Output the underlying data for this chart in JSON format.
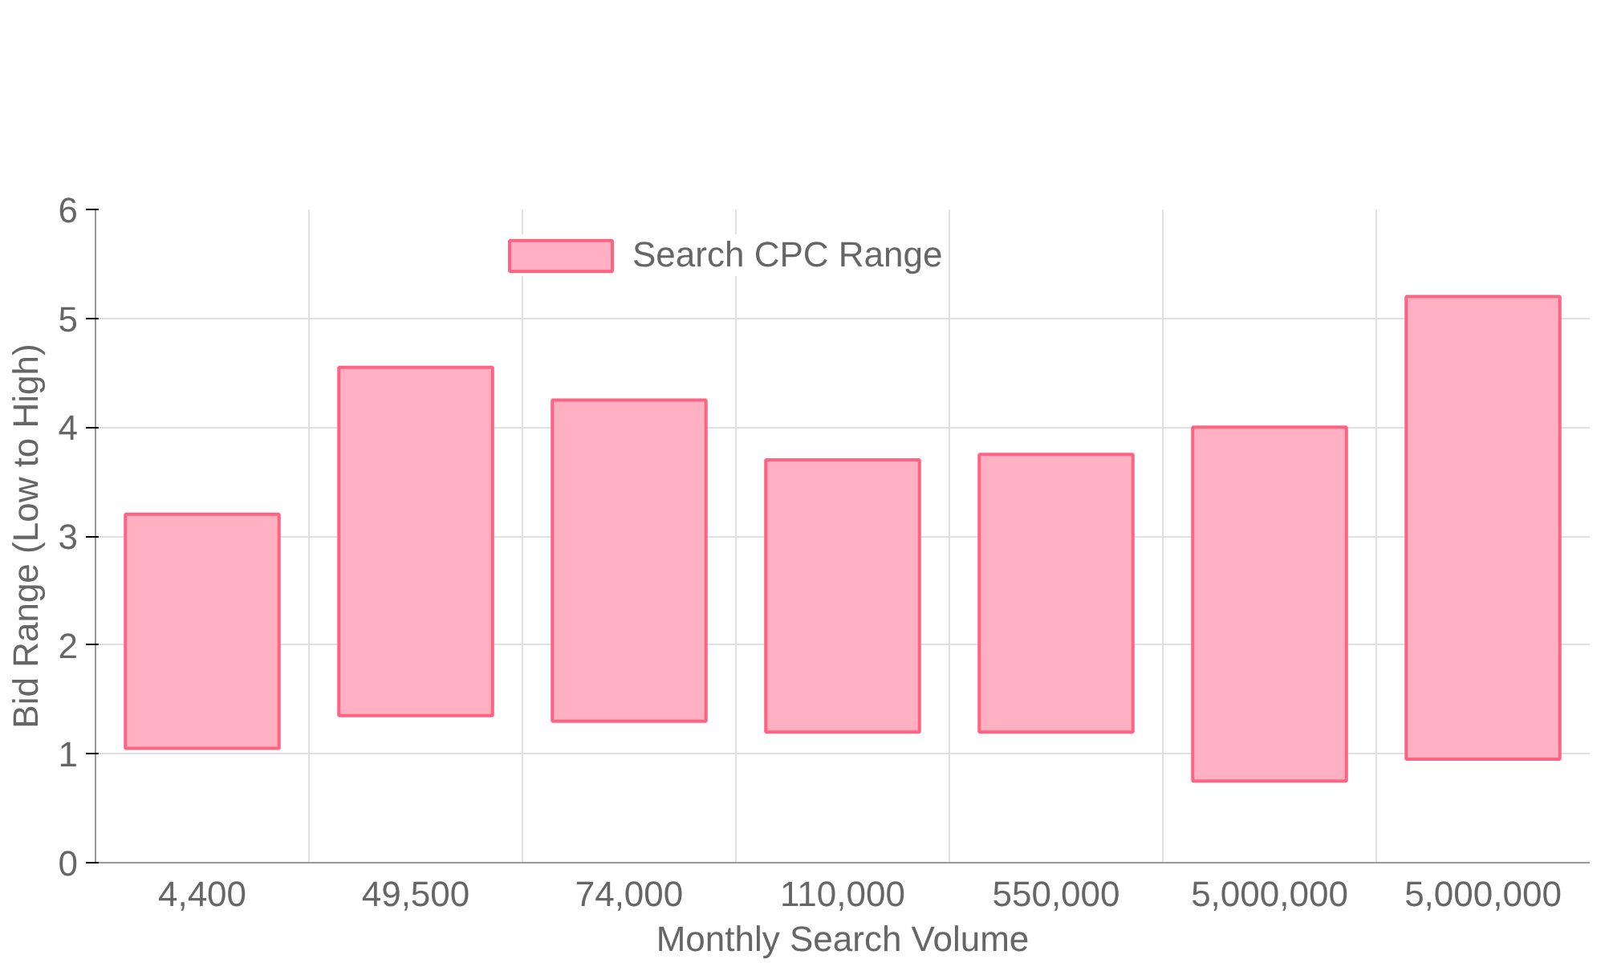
{
  "chart_data": {
    "type": "bar",
    "xlabel": "Monthly Search Volume",
    "ylabel": "Bid Range (Low to High)",
    "categories": [
      "4,400",
      "49,500",
      "74,000",
      "110,000",
      "550,000",
      "5,000,000",
      "5,000,000"
    ],
    "series": [
      {
        "name": "Search CPC Range",
        "color": "#ffb1c1",
        "values": [
          2.15,
          3.2,
          2.95,
          2.5,
          2.55,
          3.25,
          4.25
        ],
        "base": [
          1.05,
          1.35,
          1.3,
          1.2,
          1.2,
          0.75,
          0.95
        ]
      }
    ],
    "ylim": [
      0,
      6
    ],
    "yticks": [
      0,
      1,
      2,
      3,
      4,
      5,
      6
    ],
    "grid": true,
    "legend": "top"
  }
}
